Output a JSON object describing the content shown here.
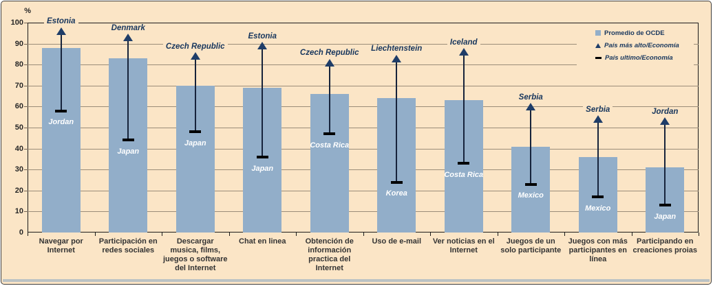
{
  "colors": {
    "background": "#fbe5c6",
    "bar": "#92aec9",
    "whisker": "#16233b",
    "max_marker": "#1f3d68",
    "min_marker": "#000000",
    "gridline": "#9a8c78",
    "frame": "#1a1a1a",
    "country_label": "#17365d",
    "in_bar_label": "#ffffff",
    "axis_text": "#333333",
    "bottom_band": "#afbcc3"
  },
  "chart_data": {
    "type": "bar",
    "title": "",
    "xlabel": "",
    "ylabel": "%",
    "ylim": [
      0,
      100
    ],
    "ytick_step": 10,
    "grid": true,
    "legend_position": "top-right",
    "legend": [
      "Promedio de OCDE",
      "País más alto/Economía",
      "País ultimo/Economía"
    ],
    "categories": [
      "Navegar por Internet",
      "Participación en redes sociales",
      "Descargar musica, films, juegos o software del Internet",
      "Chat en linea",
      "Obtención de información practica del Internet",
      "Uso de e-mail",
      "Ver noticias en el Internet",
      "Juegos de un solo participante",
      "Juegos con más participantes en línea",
      "Participando en creaciones proias"
    ],
    "series": [
      {
        "name": "Promedio de OCDE",
        "type": "bar",
        "values": [
          88,
          83,
          70,
          69,
          66,
          64,
          63,
          41,
          36,
          31
        ]
      },
      {
        "name": "País más alto/Economía",
        "type": "point",
        "marker": "triangle-up",
        "values": [
          96,
          93,
          84,
          89,
          81,
          83,
          86,
          60,
          54,
          53
        ],
        "country_labels": [
          "Estonia",
          "Denmark",
          "Czech Republic",
          "Estonia",
          "Czech Republic",
          "Liechtenstein",
          "Iceland",
          "Serbia",
          "Serbia",
          "Jordan"
        ]
      },
      {
        "name": "País ultimo/Economía",
        "type": "point",
        "marker": "dash",
        "values": [
          58,
          44,
          48,
          36,
          47,
          24,
          33,
          23,
          17,
          13
        ],
        "country_labels": [
          "Jordan",
          "Japan",
          "Japan",
          "Japan",
          "Costa Rica",
          "Korea",
          "Costa Rica",
          "Mexico",
          "Mexico",
          "Japan"
        ]
      }
    ]
  }
}
